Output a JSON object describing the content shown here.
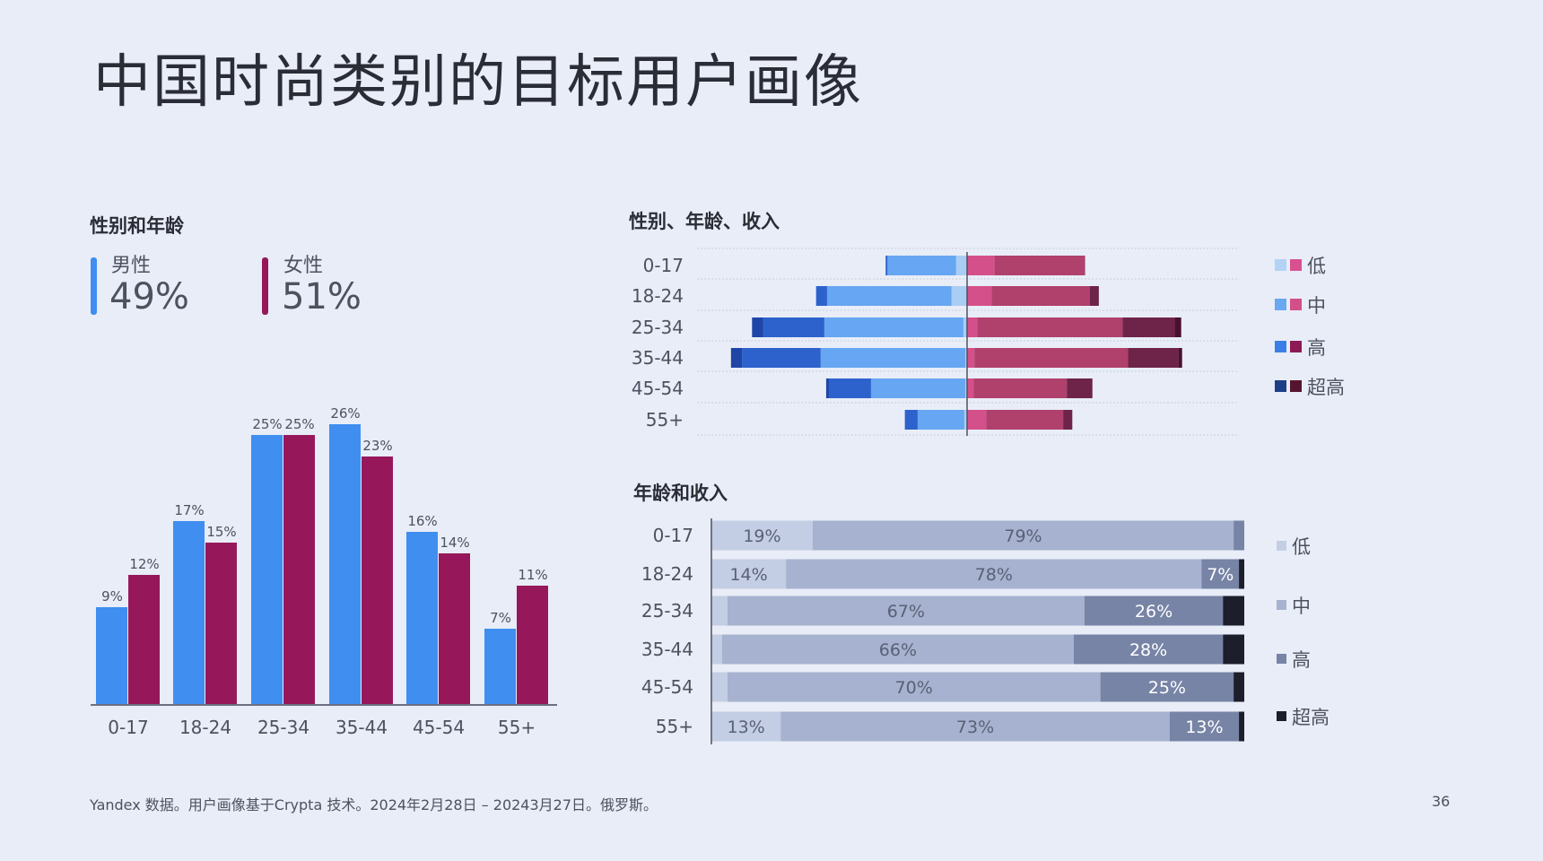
{
  "title": "中国时尚类别的目标用户画像",
  "footer": "Yandex 数据。用户画像基于Crypta 技术。2024年2月28日 – 20243月27日。俄罗斯。",
  "page_number": "36",
  "gender_summary": {
    "male": {
      "label": "男性",
      "value": "49%",
      "color": "#3f8ef0"
    },
    "female": {
      "label": "女性",
      "value": "51%",
      "color": "#97185a"
    }
  },
  "chart_data": [
    {
      "type": "bar",
      "title": "性别和年龄",
      "categories": [
        "0-17",
        "18-24",
        "25-34",
        "35-44",
        "45-54",
        "55+"
      ],
      "series": [
        {
          "name": "男性",
          "color": "#3f8ef0",
          "values": [
            9,
            17,
            25,
            26,
            16,
            7
          ],
          "labels": [
            "9%",
            "17%",
            "25%",
            "26%",
            "16%",
            "7%"
          ]
        },
        {
          "name": "女性",
          "color": "#97185a",
          "values": [
            12,
            15,
            25,
            23,
            14,
            11
          ],
          "labels": [
            "12%",
            "15%",
            "25%",
            "23%",
            "14%",
            "11%"
          ]
        }
      ],
      "ylim": [
        0,
        26
      ],
      "grid": false
    },
    {
      "type": "bar",
      "orientation": "horizontal-butterfly",
      "title": "性别、年龄、收入",
      "categories": [
        "0-17",
        "18-24",
        "25-34",
        "35-44",
        "45-54",
        "55+"
      ],
      "legend": [
        "低",
        "中",
        "高",
        "超高"
      ],
      "legend_position": "right",
      "legend_colors": {
        "male": [
          "#b3d2f6",
          "#6aa8f0",
          "#3a7fe6",
          "#1d3f86"
        ],
        "female": [
          "#d8508f",
          "#d24f8a",
          "#8e1a55",
          "#55142f"
        ]
      },
      "male": {
        "colors": [
          "#a9cdf5",
          "#66a6f2",
          "#2d62cc",
          "#1f45a6"
        ],
        "series": [
          {
            "name": "低",
            "values": [
              1.2,
              1.7,
              0.4,
              0.2,
              0.2,
              0.3
            ]
          },
          {
            "name": "中",
            "values": [
              7.5,
              13.6,
              15.2,
              15.8,
              10.3,
              5.1
            ]
          },
          {
            "name": "高",
            "values": [
              0.2,
              1.2,
              6.7,
              8.6,
              4.6,
              1.4
            ]
          },
          {
            "name": "超高",
            "values": [
              0,
              0,
              1.2,
              1.2,
              0.3,
              0
            ]
          }
        ]
      },
      "female": {
        "colors": [
          "#d4508a",
          "#b0406c",
          "#6e2448",
          "#4a1030"
        ],
        "series": [
          {
            "name": "低",
            "values": [
              3.0,
              2.7,
              1.1,
              0.8,
              0.7,
              2.1
            ]
          },
          {
            "name": "中",
            "values": [
              9.9,
              10.7,
              15.9,
              16.8,
              10.2,
              8.4
            ]
          },
          {
            "name": "高",
            "values": [
              0,
              1.0,
              5.7,
              5.5,
              2.8,
              1.0
            ]
          },
          {
            "name": "超高",
            "values": [
              0,
              0,
              0.7,
              0.4,
              0,
              0
            ]
          }
        ]
      },
      "grid": true
    },
    {
      "type": "bar",
      "orientation": "horizontal-stacked-100",
      "title": "年龄和收入",
      "categories": [
        "0-17",
        "18-24",
        "25-34",
        "35-44",
        "45-54",
        "55+"
      ],
      "legend": [
        "低",
        "中",
        "高",
        "超高"
      ],
      "legend_position": "right",
      "colors": [
        "#c3cde3",
        "#a6b2cf",
        "#7784a6",
        "#1c1e2c"
      ],
      "series": [
        {
          "name": "低",
          "values": [
            19,
            14,
            3,
            2,
            3,
            13
          ],
          "labels": [
            "19%",
            "14%",
            "",
            "",
            "",
            "13%"
          ]
        },
        {
          "name": "中",
          "values": [
            79,
            78,
            67,
            66,
            70,
            73
          ],
          "labels": [
            "79%",
            "78%",
            "67%",
            "66%",
            "70%",
            "73%"
          ]
        },
        {
          "name": "高",
          "values": [
            2,
            7,
            26,
            28,
            25,
            13
          ],
          "labels": [
            "",
            "7%",
            "26%",
            "28%",
            "25%",
            "13%"
          ]
        },
        {
          "name": "超高",
          "values": [
            0,
            1,
            4,
            4,
            2,
            1
          ],
          "labels": [
            "",
            "",
            "",
            "",
            "",
            ""
          ]
        }
      ],
      "xlim": [
        0,
        100
      ]
    }
  ]
}
